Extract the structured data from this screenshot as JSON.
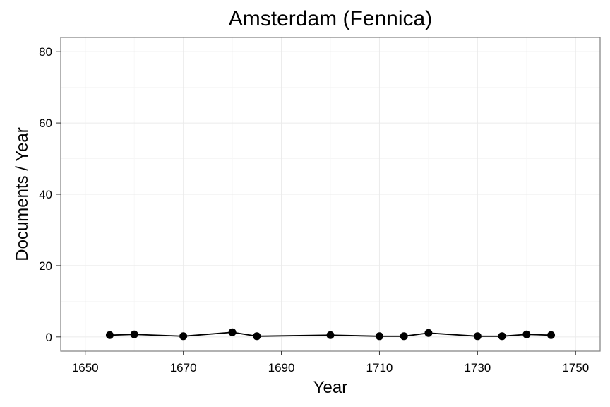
{
  "chart_data": {
    "type": "line",
    "title": "Amsterdam (Fennica)",
    "xlabel": "Year",
    "ylabel": "Documents / Year",
    "xlim": [
      1645,
      1755
    ],
    "ylim": [
      -4,
      84
    ],
    "x_ticks": [
      1650,
      1670,
      1690,
      1710,
      1730,
      1750
    ],
    "y_ticks": [
      0,
      20,
      40,
      60,
      80
    ],
    "grid": true,
    "series": [
      {
        "x": [
          1655,
          1660,
          1670,
          1680,
          1685,
          1700,
          1710,
          1715,
          1720,
          1730,
          1735,
          1740,
          1745
        ],
        "y": [
          0.5,
          0.7,
          0.2,
          1.3,
          0.2,
          0.5,
          0.2,
          0.2,
          1.1,
          0.2,
          0.2,
          0.7,
          0.5
        ]
      }
    ]
  }
}
